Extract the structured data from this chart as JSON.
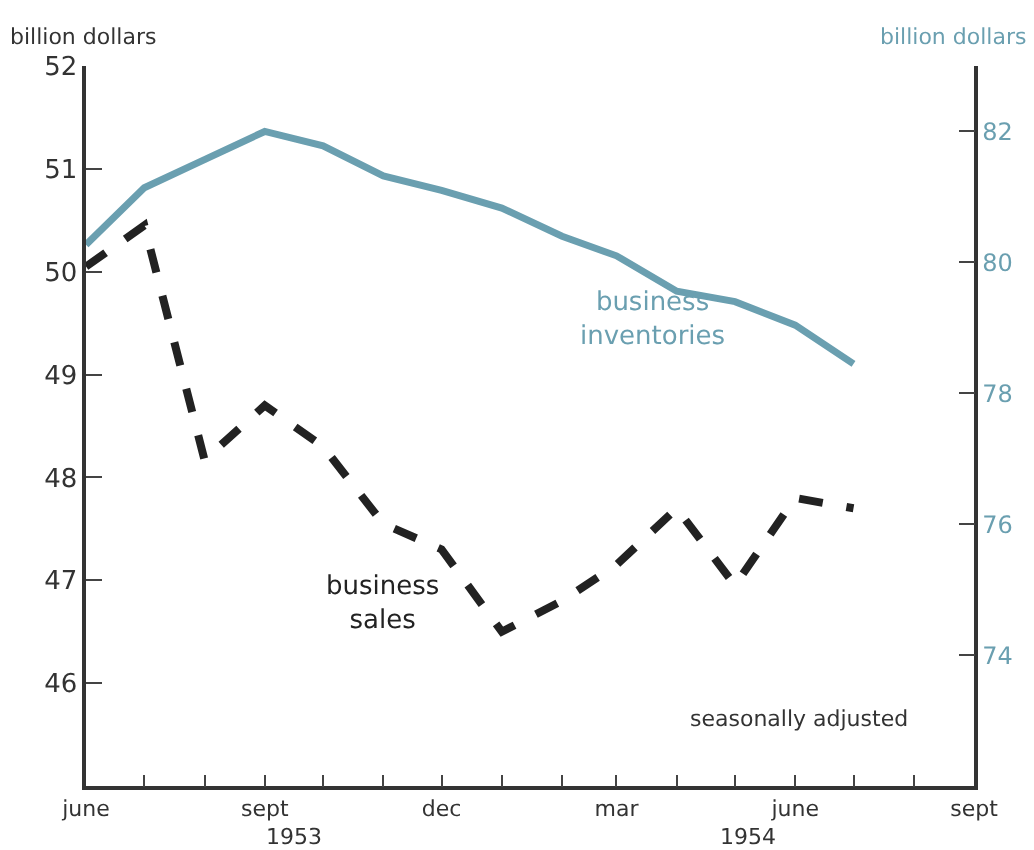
{
  "chart_data": {
    "type": "line",
    "ylabel": "billion dollars",
    "y2label": "billion dollars",
    "x": [
      "1953-06",
      "1953-07",
      "1953-08",
      "1953-09",
      "1953-10",
      "1953-11",
      "1953-12",
      "1954-01",
      "1954-02",
      "1954-03",
      "1954-04",
      "1954-05",
      "1954-06",
      "1954-07"
    ],
    "series": [
      {
        "name": "business inventories",
        "color": "#6a9fb0",
        "axis": "y2",
        "line_style": "solid",
        "values": [
          80.27,
          81.14,
          81.57,
          82.0,
          81.78,
          81.32,
          81.1,
          80.83,
          80.4,
          80.1,
          79.56,
          79.4,
          79.04,
          78.45
        ]
      },
      {
        "name": "business sales",
        "color": "#222222",
        "line_style": "dashed",
        "values": [
          50.05,
          50.45,
          48.17,
          48.7,
          48.3,
          47.55,
          47.3,
          46.5,
          46.8,
          47.15,
          47.7,
          46.95,
          47.8,
          47.7
        ]
      }
    ],
    "xlim": [
      "1953-06",
      "1954-09"
    ],
    "xticks": [
      {
        "value": "1953-06",
        "label": "june"
      },
      {
        "value": "1953-07",
        "label": null
      },
      {
        "value": "1953-08",
        "label": null
      },
      {
        "value": "1953-09",
        "label": "sept"
      },
      {
        "value": "1953-10",
        "label": null
      },
      {
        "value": "1953-11",
        "label": null
      },
      {
        "value": "1953-12",
        "label": "dec"
      },
      {
        "value": "1954-01",
        "label": null
      },
      {
        "value": "1954-02",
        "label": null
      },
      {
        "value": "1954-03",
        "label": "mar"
      },
      {
        "value": "1954-04",
        "label": null
      },
      {
        "value": "1954-05",
        "label": null
      },
      {
        "value": "1954-06",
        "label": "june"
      },
      {
        "value": "1954-07",
        "label": null
      },
      {
        "value": "1954-08",
        "label": null
      },
      {
        "value": "1954-09",
        "label": "sept"
      }
    ],
    "ylim": [
      45,
      52
    ],
    "yticks": [
      46,
      47,
      48,
      49,
      50,
      51,
      52
    ],
    "y2lim": [
      72,
      83
    ],
    "y2ticks": [
      74,
      76,
      78,
      80,
      82
    ],
    "annotations": [
      "seasonally adjusted",
      "1953",
      "1954"
    ],
    "legend": false,
    "marker": "none"
  }
}
